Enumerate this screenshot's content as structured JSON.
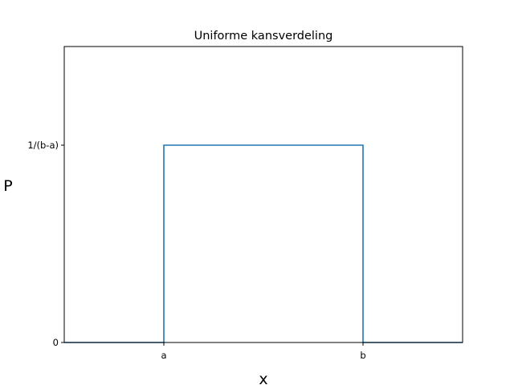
{
  "chart_data": {
    "type": "line",
    "title": "Uniforme kansverdeling",
    "xlabel": "x",
    "ylabel": "P",
    "x_ticks": [
      {
        "value": 0.25,
        "label": "a"
      },
      {
        "value": 0.75,
        "label": "b"
      }
    ],
    "y_ticks": [
      {
        "value": 0,
        "label": "0"
      },
      {
        "value": 1,
        "label": "1/(b-a)"
      }
    ],
    "xlim": [
      0,
      1
    ],
    "ylim": [
      0,
      1.5
    ],
    "grid": false,
    "series": [
      {
        "color": "#1f77b4",
        "points": [
          [
            0,
            0
          ],
          [
            0.25,
            0
          ],
          [
            0.25,
            1
          ],
          [
            0.75,
            1
          ],
          [
            0.75,
            0
          ],
          [
            1,
            0
          ]
        ]
      }
    ]
  }
}
